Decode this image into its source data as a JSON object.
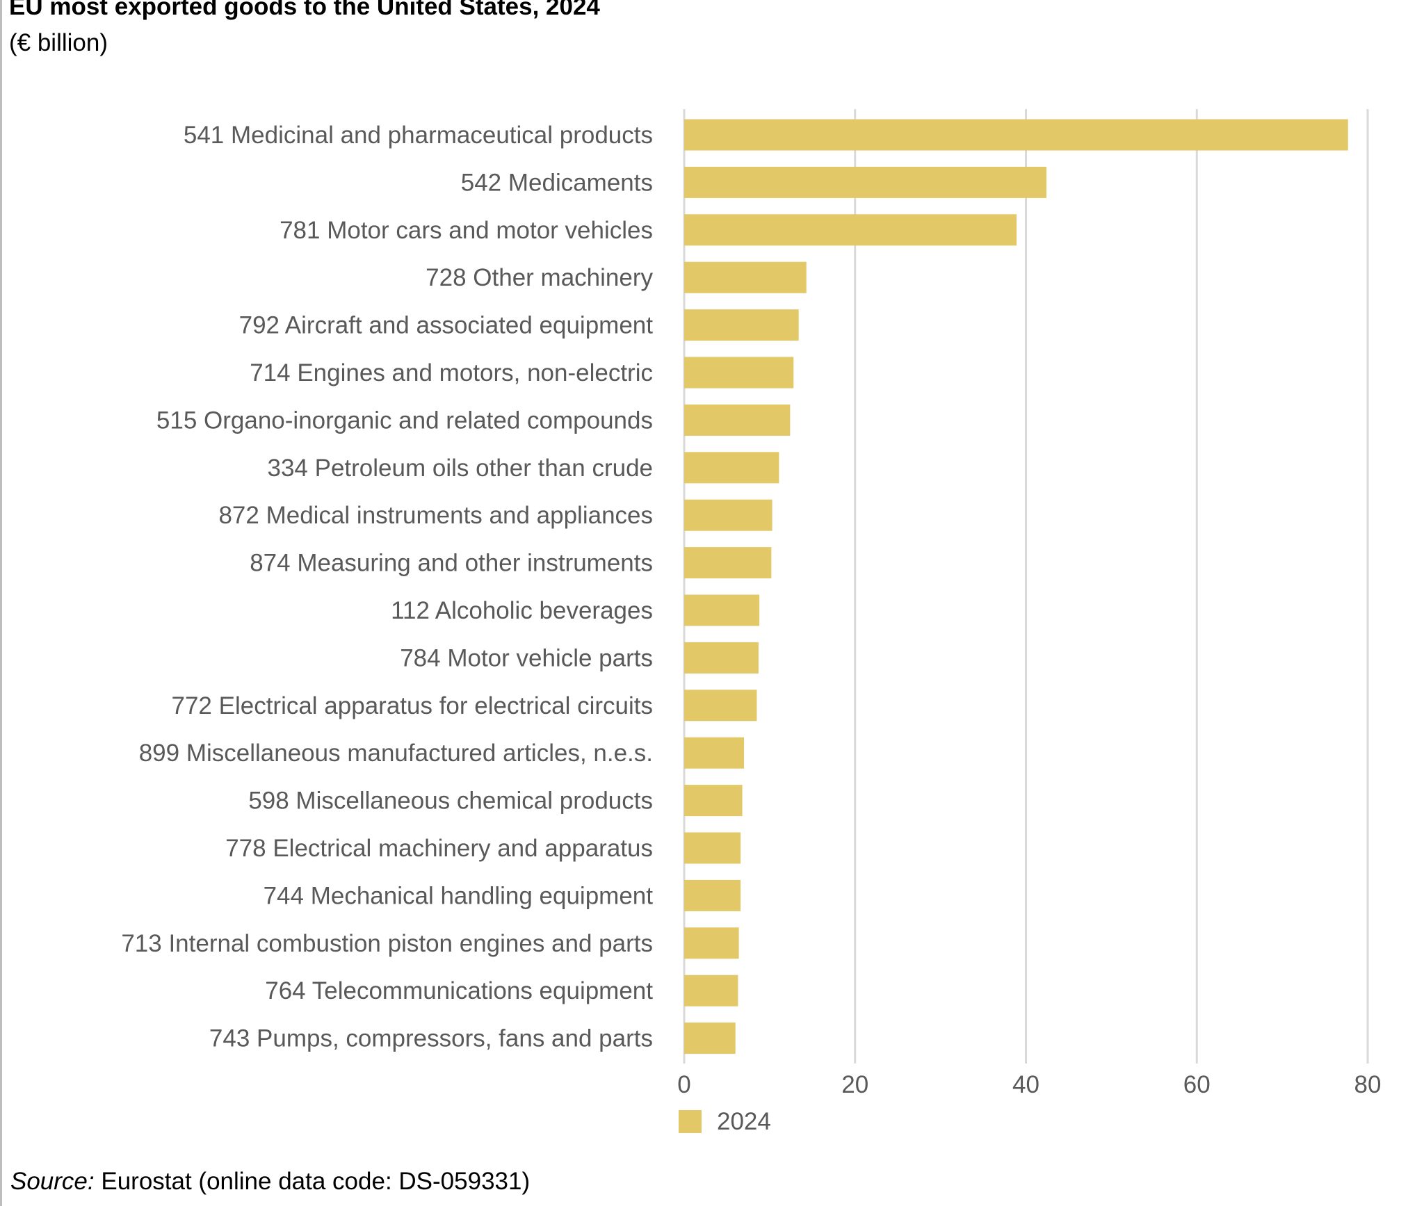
{
  "chart_data": {
    "type": "bar",
    "orientation": "horizontal",
    "title": "EU most exported goods to the United States, 2024",
    "subtitle": "(€ billion)",
    "categories": [
      "541 Medicinal and pharmaceutical products",
      "542 Medicaments",
      "781 Motor cars and motor vehicles",
      "728 Other machinery",
      "792 Aircraft and associated equipment",
      "714 Engines and motors, non-electric",
      "515 Organo-inorganic and related compounds",
      "334 Petroleum oils other than crude",
      "872 Medical instruments and appliances",
      "874 Measuring and other instruments",
      "112 Alcoholic beverages",
      "784 Motor vehicle parts",
      "772 Electrical apparatus for electrical circuits",
      "899 Miscellaneous manufactured articles, n.e.s.",
      "598 Miscellaneous chemical products",
      "778 Electrical machinery and apparatus",
      "744 Mechanical handling equipment",
      "713 Internal combustion piston engines and parts",
      "764 Telecommunications equipment",
      "743 Pumps, compressors, fans and parts"
    ],
    "series": [
      {
        "name": "2024",
        "color": "#e2c866",
        "values": [
          77.7,
          42.4,
          38.9,
          14.3,
          13.4,
          12.8,
          12.4,
          11.1,
          10.3,
          10.2,
          8.8,
          8.7,
          8.5,
          7.0,
          6.8,
          6.6,
          6.6,
          6.4,
          6.3,
          6.0
        ]
      }
    ],
    "xlim": [
      0,
      80
    ],
    "xticks": [
      "0",
      "20",
      "40",
      "60",
      "80"
    ],
    "grid": true,
    "legend_position": "bottom"
  },
  "source": {
    "prefix": "Source:",
    "text": " Eurostat (online data code: DS-059331)"
  }
}
